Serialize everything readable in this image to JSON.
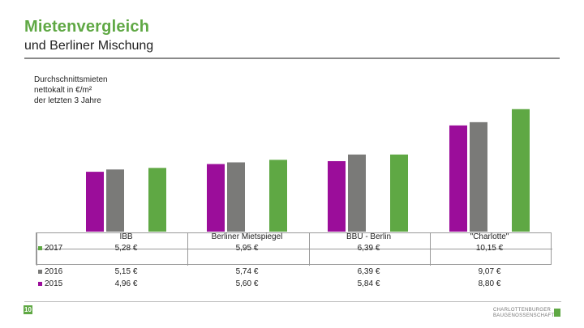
{
  "header": {
    "title": "Mietenvergleich",
    "subtitle": "und Berliner Mischung"
  },
  "colors": {
    "2015": "#9b0d9a",
    "2016": "#7a7a78",
    "2017": "#5fa844",
    "accent": "#5fa844"
  },
  "chart_data": {
    "type": "bar",
    "ylabel": "Durchschnittsmieten\nnettokalt in €/m²\nder letzten 3 Jahre",
    "categories": [
      "IBB",
      "Berliner Mietspiegel",
      "BBU - Berlin",
      "\"Charlotte\""
    ],
    "ylim": [
      0,
      11
    ],
    "series": [
      {
        "name": "2015",
        "values": [
          4.96,
          5.6,
          5.84,
          8.8
        ],
        "labels": [
          "4,96 €",
          "5,60 €",
          "5,84 €",
          "8,80 €"
        ]
      },
      {
        "name": "2016",
        "values": [
          5.15,
          5.74,
          6.39,
          9.07
        ],
        "labels": [
          "5,15 €",
          "5,74 €",
          "6,39 €",
          "9,07 €"
        ]
      },
      {
        "name": "2017",
        "values": [
          5.28,
          5.95,
          6.39,
          10.15
        ],
        "labels": [
          "5,28 €",
          "5,95 €",
          "6,39 €",
          "10,15 €"
        ]
      }
    ],
    "grid": false,
    "legend": "table-bottom"
  },
  "footer": {
    "page": "10",
    "logo_line1": "CHARLOTTENBURGER",
    "logo_line2": "BAUGENOSSENSCHAFT"
  }
}
